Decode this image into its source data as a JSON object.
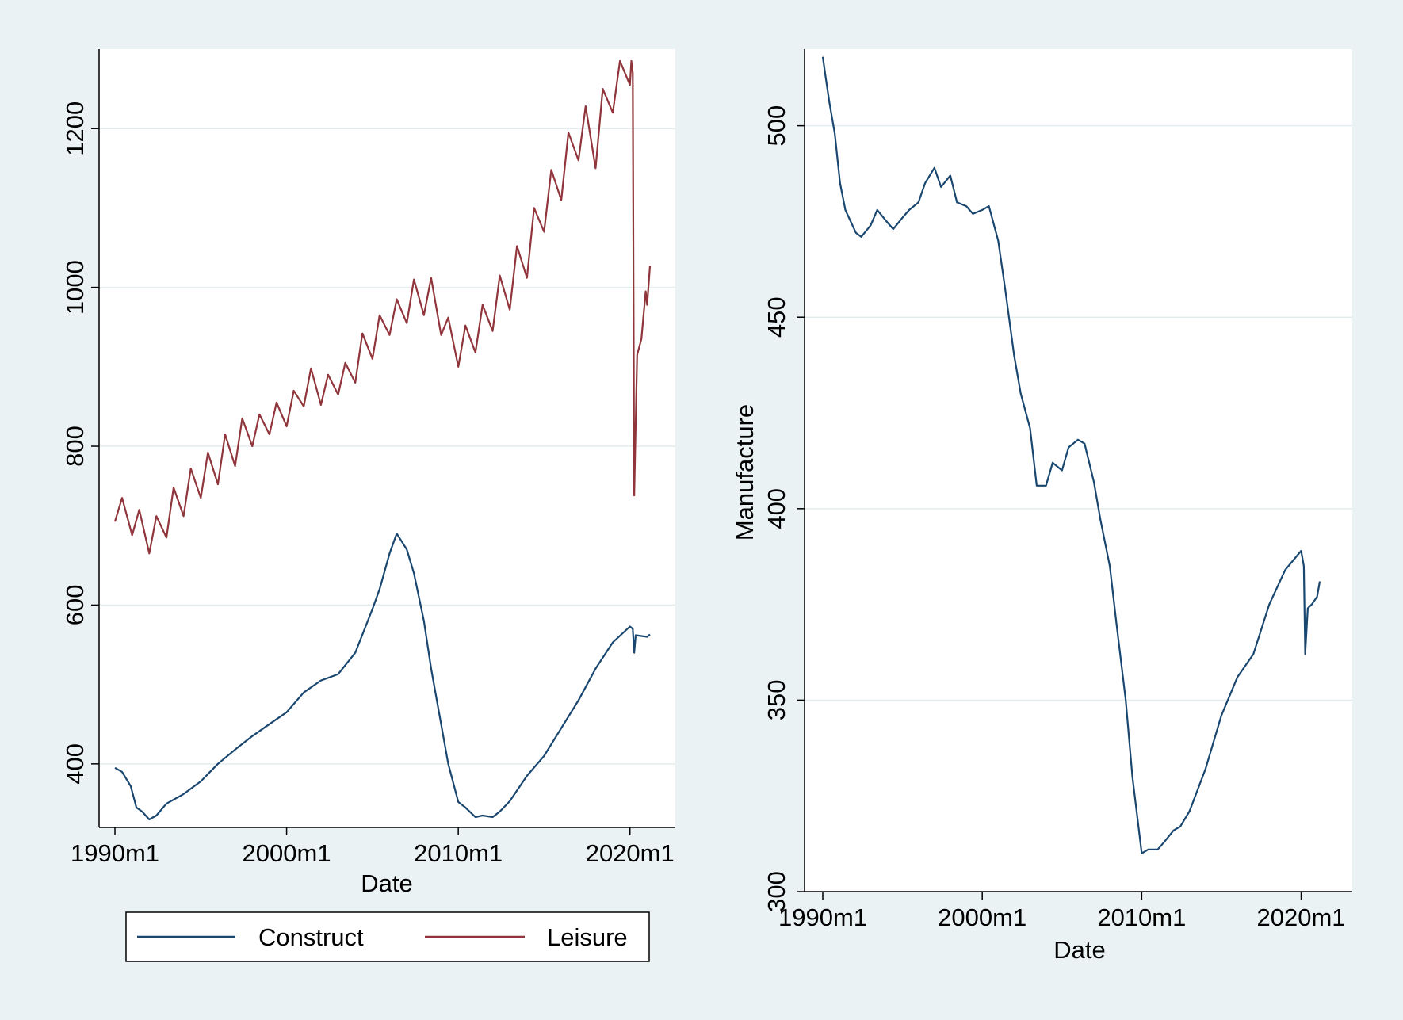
{
  "colors": {
    "background": "#eaf2f3",
    "plot_area": "#ffffff",
    "gridline": "#e3ecee",
    "construct": "#1a476f",
    "leisure": "#90353b"
  },
  "chart_data": [
    {
      "type": "line",
      "xlabel": "Date",
      "ylabel": "",
      "x_ticks": [
        "1990m1",
        "2000m1",
        "2010m1",
        "2020m1"
      ],
      "xlim": [
        "1990m1",
        "2021m3"
      ],
      "ylim": [
        320,
        1300
      ],
      "y_ticks": [
        "400",
        "600",
        "800",
        "1000",
        "1200"
      ],
      "grid": true,
      "legend": {
        "position": "bottom",
        "entries": [
          "Construct",
          "Leisure"
        ]
      },
      "series": [
        {
          "name": "Construct",
          "points": [
            [
              "1990m1",
              395
            ],
            [
              "1990m6",
              390
            ],
            [
              "1990m12",
              372
            ],
            [
              "1991m4",
              345
            ],
            [
              "1991m8",
              340
            ],
            [
              "1992m1",
              330
            ],
            [
              "1992m6",
              335
            ],
            [
              "1993m1",
              350
            ],
            [
              "1993m6",
              355
            ],
            [
              "1994m1",
              362
            ],
            [
              "1995m1",
              378
            ],
            [
              "1996m1",
              400
            ],
            [
              "1997m1",
              418
            ],
            [
              "1998m1",
              435
            ],
            [
              "1999m1",
              450
            ],
            [
              "2000m1",
              465
            ],
            [
              "2001m1",
              490
            ],
            [
              "2002m1",
              505
            ],
            [
              "2003m1",
              513
            ],
            [
              "2004m1",
              540
            ],
            [
              "2005m1",
              595
            ],
            [
              "2005m6",
              620
            ],
            [
              "2006m1",
              665
            ],
            [
              "2006m6",
              690
            ],
            [
              "2007m1",
              670
            ],
            [
              "2007m6",
              640
            ],
            [
              "2008m1",
              580
            ],
            [
              "2008m6",
              520
            ],
            [
              "2009m1",
              450
            ],
            [
              "2009m6",
              400
            ],
            [
              "2010m1",
              352
            ],
            [
              "2010m6",
              345
            ],
            [
              "2011m1",
              333
            ],
            [
              "2011m6",
              335
            ],
            [
              "2012m1",
              333
            ],
            [
              "2012m6",
              340
            ],
            [
              "2013m1",
              353
            ],
            [
              "2014m1",
              385
            ],
            [
              "2015m1",
              410
            ],
            [
              "2016m1",
              445
            ],
            [
              "2017m1",
              480
            ],
            [
              "2018m1",
              520
            ],
            [
              "2019m1",
              553
            ],
            [
              "2020m1",
              573
            ],
            [
              "2020m3",
              570
            ],
            [
              "2020m4",
              540
            ],
            [
              "2020m5",
              562
            ],
            [
              "2021m1",
              560
            ],
            [
              "2021m3",
              563
            ]
          ]
        },
        {
          "name": "Leisure",
          "points": [
            [
              "1990m1",
              705
            ],
            [
              "1990m6",
              735
            ],
            [
              "1991m1",
              688
            ],
            [
              "1991m6",
              720
            ],
            [
              "1992m1",
              665
            ],
            [
              "1992m6",
              712
            ],
            [
              "1993m1",
              685
            ],
            [
              "1993m6",
              748
            ],
            [
              "1994m1",
              712
            ],
            [
              "1994m6",
              772
            ],
            [
              "1995m1",
              735
            ],
            [
              "1995m6",
              792
            ],
            [
              "1996m1",
              752
            ],
            [
              "1996m6",
              815
            ],
            [
              "1997m1",
              775
            ],
            [
              "1997m6",
              835
            ],
            [
              "1998m1",
              800
            ],
            [
              "1998m6",
              840
            ],
            [
              "1999m1",
              815
            ],
            [
              "1999m6",
              855
            ],
            [
              "2000m1",
              825
            ],
            [
              "2000m6",
              870
            ],
            [
              "2001m1",
              850
            ],
            [
              "2001m6",
              898
            ],
            [
              "2002m1",
              852
            ],
            [
              "2002m6",
              890
            ],
            [
              "2003m1",
              865
            ],
            [
              "2003m6",
              905
            ],
            [
              "2004m1",
              880
            ],
            [
              "2004m6",
              942
            ],
            [
              "2005m1",
              910
            ],
            [
              "2005m6",
              965
            ],
            [
              "2006m1",
              940
            ],
            [
              "2006m6",
              985
            ],
            [
              "2007m1",
              955
            ],
            [
              "2007m6",
              1010
            ],
            [
              "2008m1",
              965
            ],
            [
              "2008m6",
              1012
            ],
            [
              "2009m1",
              940
            ],
            [
              "2009m6",
              962
            ],
            [
              "2010m1",
              900
            ],
            [
              "2010m6",
              952
            ],
            [
              "2011m1",
              918
            ],
            [
              "2011m6",
              978
            ],
            [
              "2012m1",
              945
            ],
            [
              "2012m6",
              1015
            ],
            [
              "2013m1",
              972
            ],
            [
              "2013m6",
              1052
            ],
            [
              "2014m1",
              1012
            ],
            [
              "2014m6",
              1100
            ],
            [
              "2015m1",
              1070
            ],
            [
              "2015m6",
              1148
            ],
            [
              "2016m1",
              1110
            ],
            [
              "2016m6",
              1195
            ],
            [
              "2017m1",
              1160
            ],
            [
              "2017m6",
              1228
            ],
            [
              "2018m1",
              1150
            ],
            [
              "2018m6",
              1250
            ],
            [
              "2019m1",
              1220
            ],
            [
              "2019m6",
              1285
            ],
            [
              "2020m1",
              1255
            ],
            [
              "2020m2",
              1285
            ],
            [
              "2020m3",
              1270
            ],
            [
              "2020m4",
              738
            ],
            [
              "2020m6",
              915
            ],
            [
              "2020m9",
              935
            ],
            [
              "2020m12",
              995
            ],
            [
              "2021m1",
              978
            ],
            [
              "2021m3",
              1027
            ]
          ]
        }
      ]
    },
    {
      "type": "line",
      "xlabel": "Date",
      "ylabel": "Manufacture",
      "x_ticks": [
        "1990m1",
        "2000m1",
        "2010m1",
        "2020m1"
      ],
      "xlim": [
        "1990m1",
        "2021m3"
      ],
      "ylim": [
        300,
        520
      ],
      "y_ticks": [
        "300",
        "350",
        "400",
        "450",
        "500"
      ],
      "grid": true,
      "series": [
        {
          "name": "Manufacture",
          "points": [
            [
              "1990m1",
              518
            ],
            [
              "1990m3",
              513
            ],
            [
              "1990m6",
              506
            ],
            [
              "1990m10",
              498
            ],
            [
              "1991m2",
              485
            ],
            [
              "1991m6",
              478
            ],
            [
              "1991m10",
              475
            ],
            [
              "1992m2",
              472
            ],
            [
              "1992m6",
              471
            ],
            [
              "1993m1",
              474
            ],
            [
              "1993m6",
              478
            ],
            [
              "1994m1",
              475
            ],
            [
              "1994m6",
              473
            ],
            [
              "1995m1",
              476
            ],
            [
              "1995m6",
              478
            ],
            [
              "1996m1",
              480
            ],
            [
              "1996m6",
              485
            ],
            [
              "1997m1",
              489
            ],
            [
              "1997m6",
              484
            ],
            [
              "1998m1",
              487
            ],
            [
              "1998m6",
              480
            ],
            [
              "1999m1",
              479
            ],
            [
              "1999m6",
              477
            ],
            [
              "2000m1",
              478
            ],
            [
              "2000m6",
              479
            ],
            [
              "2001m1",
              470
            ],
            [
              "2001m6",
              458
            ],
            [
              "2002m1",
              440
            ],
            [
              "2002m6",
              430
            ],
            [
              "2003m1",
              421
            ],
            [
              "2003m6",
              406
            ],
            [
              "2004m1",
              406
            ],
            [
              "2004m6",
              412
            ],
            [
              "2005m1",
              410
            ],
            [
              "2005m6",
              416
            ],
            [
              "2006m1",
              418
            ],
            [
              "2006m6",
              417
            ],
            [
              "2007m1",
              407
            ],
            [
              "2007m6",
              397
            ],
            [
              "2008m1",
              385
            ],
            [
              "2008m6",
              370
            ],
            [
              "2009m1",
              350
            ],
            [
              "2009m6",
              330
            ],
            [
              "2010m1",
              310
            ],
            [
              "2010m6",
              311
            ],
            [
              "2011m1",
              311
            ],
            [
              "2011m6",
              313
            ],
            [
              "2012m1",
              316
            ],
            [
              "2012m6",
              317
            ],
            [
              "2013m1",
              321
            ],
            [
              "2014m1",
              332
            ],
            [
              "2015m1",
              346
            ],
            [
              "2016m1",
              356
            ],
            [
              "2017m1",
              362
            ],
            [
              "2018m1",
              375
            ],
            [
              "2019m1",
              384
            ],
            [
              "2020m1",
              389
            ],
            [
              "2020m3",
              385
            ],
            [
              "2020m4",
              362
            ],
            [
              "2020m6",
              374
            ],
            [
              "2020m9",
              375
            ],
            [
              "2021m1",
              377
            ],
            [
              "2021m3",
              381
            ]
          ]
        }
      ]
    }
  ]
}
